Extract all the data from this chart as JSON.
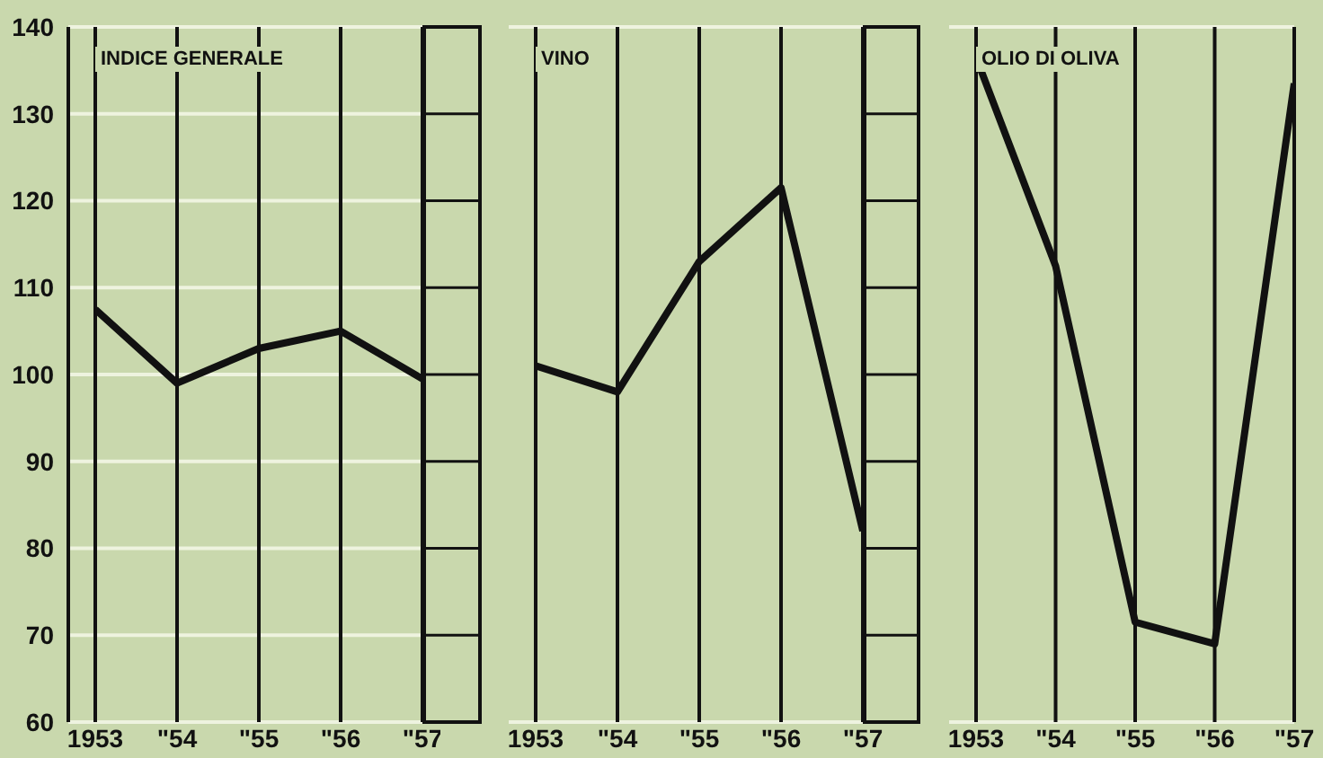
{
  "chart_data": [
    {
      "type": "line",
      "title": "INDICE GENERALE",
      "categories": [
        "1953",
        "\"54",
        "\"55",
        "\"56",
        "\"57"
      ],
      "values": [
        107.5,
        99,
        103,
        105,
        99.5
      ],
      "color": "#111111",
      "ylim": [
        60,
        140
      ],
      "yticks": [
        60,
        70,
        80,
        90,
        100,
        110,
        120,
        130,
        140
      ],
      "grid": true,
      "marker": "none",
      "line_style": "solid"
    },
    {
      "type": "line",
      "title": "VINO",
      "categories": [
        "1953",
        "\"54",
        "\"55",
        "\"56",
        "\"57"
      ],
      "values": [
        101,
        98,
        113,
        121.5,
        82
      ],
      "color": "#111111",
      "ylim": [
        60,
        140
      ],
      "yticks": [
        60,
        70,
        80,
        90,
        100,
        110,
        120,
        130,
        140
      ],
      "grid": true,
      "marker": "none",
      "line_style": "solid",
      "tick_labels": "x"
    },
    {
      "type": "line",
      "title": "OLIO DI OLIVA",
      "categories": [
        "1953",
        "\"54",
        "\"55",
        "\"56",
        "\"57"
      ],
      "values": [
        136.5,
        112.5,
        71.5,
        69,
        133.5
      ],
      "color": "#111111",
      "ylim": [
        60,
        140
      ],
      "yticks": [
        60,
        70,
        80,
        90,
        100,
        110,
        120,
        130,
        140
      ],
      "grid": true,
      "marker": "none",
      "line_style": "solid",
      "tick_labels": "x"
    }
  ]
}
